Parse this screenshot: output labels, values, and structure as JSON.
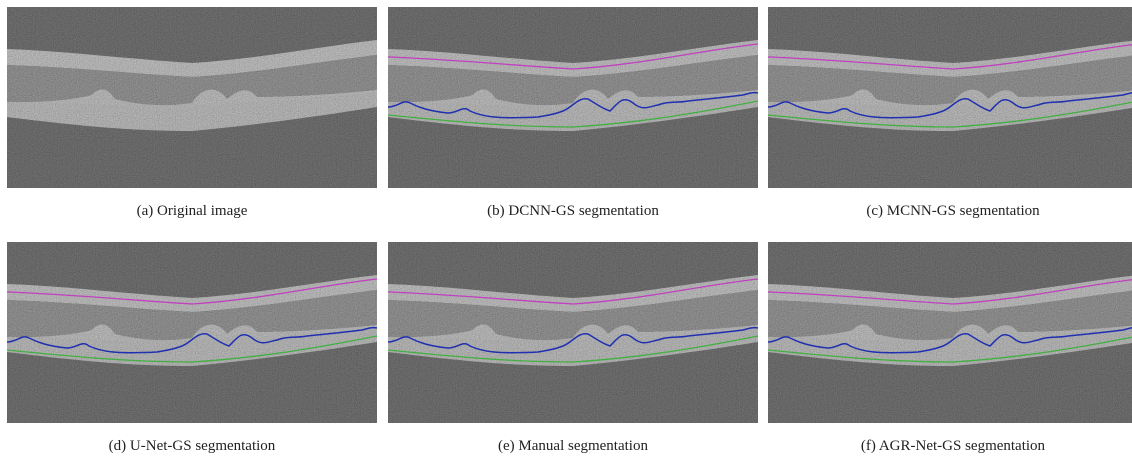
{
  "panels": [
    {
      "caption": "(a) Original image"
    },
    {
      "caption": "(b) DCNN-GS segmentation"
    },
    {
      "caption": "(c) MCNN-GS segmentation"
    },
    {
      "caption": "(d) U-Net-GS segmentation"
    },
    {
      "caption": "(e) Manual segmentation"
    },
    {
      "caption": "(f) AGR-Net-GS segmentation"
    }
  ]
}
